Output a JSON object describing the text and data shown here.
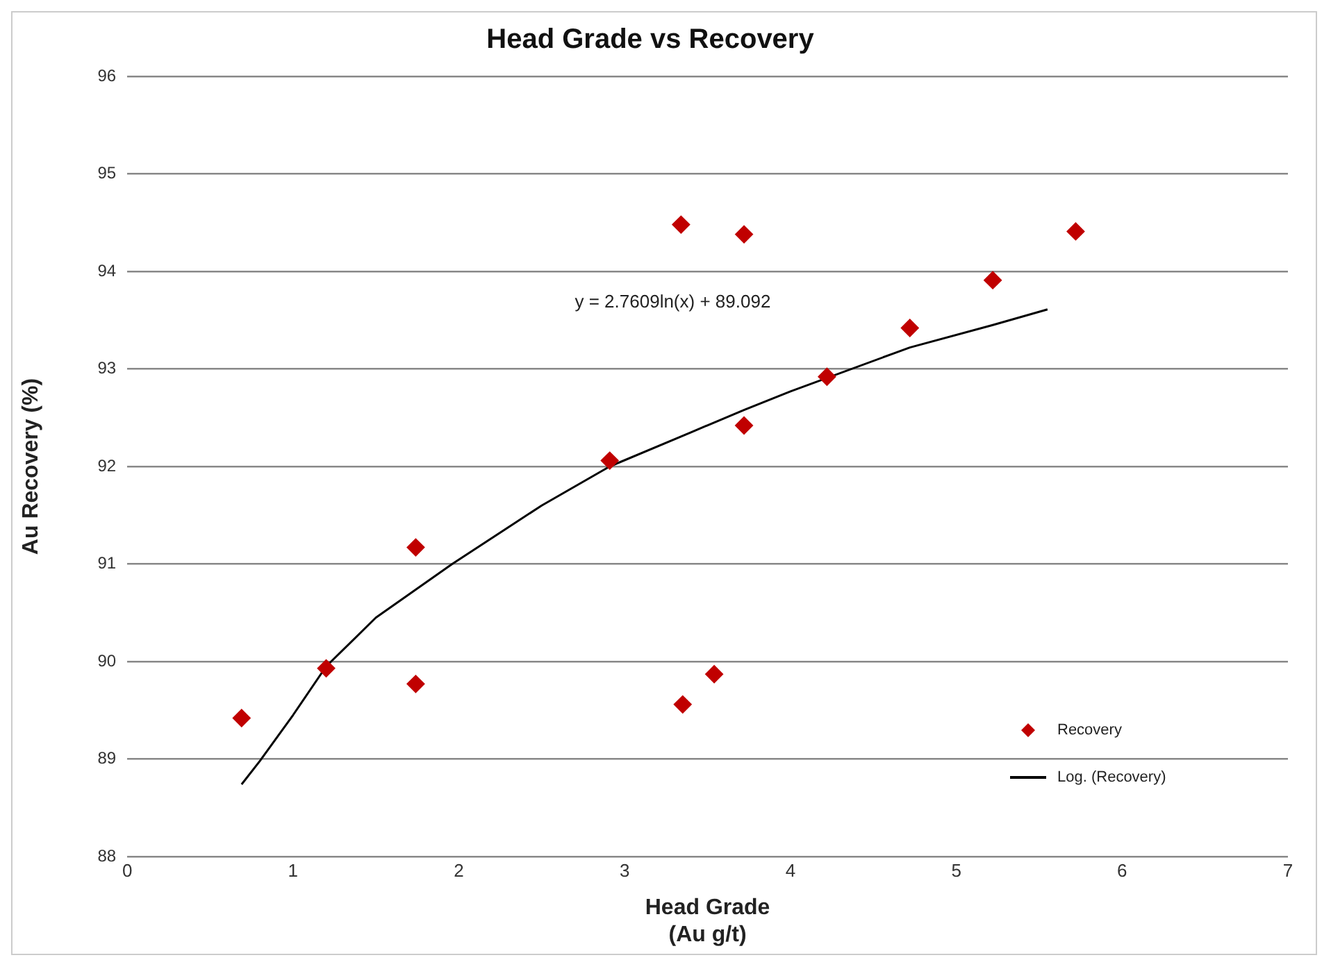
{
  "chart_data": {
    "type": "scatter",
    "title": "Head Grade vs Recovery",
    "xlabel": "Head Grade\n(Au g/t)",
    "ylabel": "Au Recovery (%)",
    "series": [
      {
        "name": "Recovery",
        "color": "#c00000",
        "marker": "diamond",
        "x": [
          0.69,
          1.2,
          1.74,
          1.74,
          3.35,
          3.54,
          2.91,
          3.34,
          3.72,
          3.72,
          4.22,
          4.72,
          5.22,
          5.72
        ],
        "values": [
          89.42,
          89.93,
          91.17,
          89.77,
          89.56,
          89.87,
          92.06,
          94.48,
          94.38,
          92.42,
          92.92,
          93.42,
          93.91,
          94.41
        ]
      },
      {
        "name": "Log. (Recovery)",
        "type": "line",
        "color": "#000000",
        "line_style": "solid",
        "marker": "none",
        "x": [
          0.69,
          0.8,
          1,
          1.2,
          1.5,
          1.96,
          2.5,
          2.91,
          3.4,
          3.72,
          4.0,
          4.72,
          5.22,
          5.55
        ],
        "values": [
          88.74,
          88.98,
          89.45,
          89.95,
          90.45,
          91.0,
          91.6,
          92.0,
          92.35,
          92.58,
          92.77,
          93.22,
          93.45,
          93.61
        ]
      }
    ],
    "annotations": [
      "y = 2.7609ln(x) + 89.092"
    ],
    "xlim": [
      0,
      7
    ],
    "xticks": [
      0,
      1,
      2,
      3,
      4,
      5,
      6,
      7
    ],
    "ylim": [
      88,
      96
    ],
    "yticks": [
      88,
      89,
      90,
      91,
      92,
      93,
      94,
      95,
      96
    ],
    "grid": "y",
    "legend": "bottom right"
  }
}
